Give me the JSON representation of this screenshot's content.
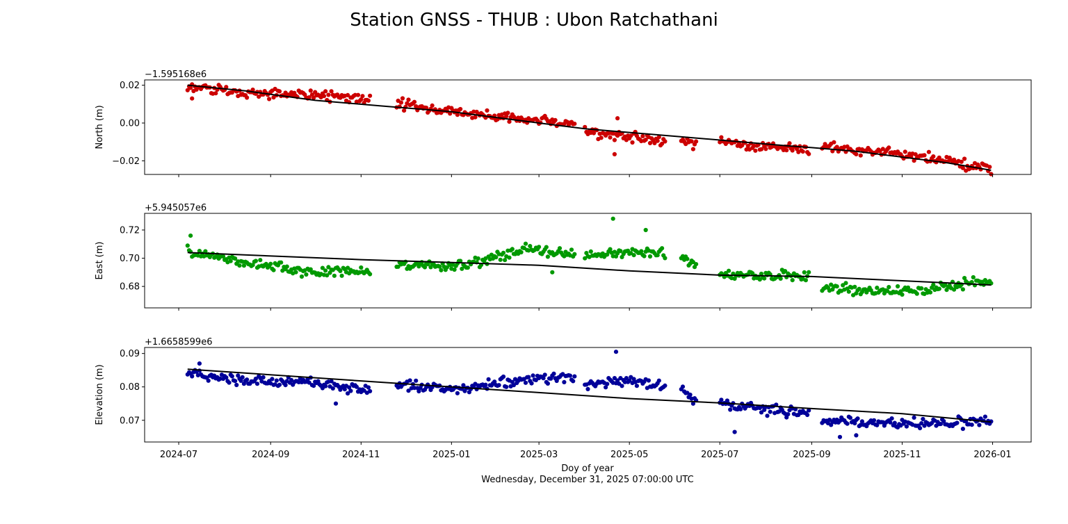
{
  "figure": {
    "title": "Station GNSS - THUB : Ubon Ratchathani",
    "xlabel": "Doy of year",
    "date_line": "Wednesday, December 31, 2025 07:00:00 UTC"
  },
  "colors": {
    "north": "#cc0000",
    "east": "#009900",
    "elevation": "#000099",
    "trend": "#000000"
  },
  "chart_data": [
    {
      "type": "scatter",
      "name": "north",
      "ylabel": "North (m)",
      "offset_label": "−1.595168e6",
      "x_range": [
        "2024-06-08",
        "2026-01-27"
      ],
      "xticks": [
        "2024-07",
        "2024-09",
        "2024-11",
        "2025-01",
        "2025-03",
        "2025-05",
        "2025-07",
        "2025-09",
        "2025-11",
        "2026-01"
      ],
      "ylim": [
        -0.0272,
        0.0228
      ],
      "yticks": [
        -0.02,
        0.0,
        0.02
      ],
      "ytick_labels": [
        "−0.02",
        "0.00",
        "0.02"
      ],
      "trend": {
        "x": [
          "2024-07-07",
          "2024-08-15",
          "2024-10-01",
          "2024-11-15",
          "2025-01-01",
          "2025-03-01",
          "2025-04-01",
          "2025-05-01",
          "2025-06-01",
          "2025-07-01",
          "2025-08-15",
          "2025-09-01",
          "2025-10-01",
          "2025-11-01",
          "2025-12-01",
          "2025-12-31"
        ],
        "y": [
          0.02,
          0.017,
          0.012,
          0.009,
          0.006,
          0.0,
          -0.003,
          -0.005,
          -0.007,
          -0.009,
          -0.012,
          -0.013,
          -0.015,
          -0.018,
          -0.021,
          -0.025
        ]
      },
      "segments": [
        {
          "x": [
            "2024-07-07",
            "2024-08-15",
            "2024-10-01",
            "2024-11-07"
          ],
          "y": [
            0.019,
            0.016,
            0.015,
            0.012
          ]
        },
        {
          "x": [
            "2024-11-25",
            "2025-01-01",
            "2025-02-15",
            "2025-03-25"
          ],
          "y": [
            0.01,
            0.006,
            0.002,
            0.0
          ]
        },
        {
          "x": [
            "2025-04-01",
            "2025-05-01",
            "2025-05-25"
          ],
          "y": [
            -0.005,
            -0.007,
            -0.01
          ]
        },
        {
          "x": [
            "2025-06-05",
            "2025-06-15"
          ],
          "y": [
            -0.009,
            -0.011
          ]
        },
        {
          "x": [
            "2025-07-01",
            "2025-08-10",
            "2025-08-30"
          ],
          "y": [
            -0.01,
            -0.013,
            -0.014
          ]
        },
        {
          "x": [
            "2025-09-08",
            "2025-10-15",
            "2025-12-01",
            "2025-12-31"
          ],
          "y": [
            -0.013,
            -0.015,
            -0.02,
            -0.025
          ]
        }
      ],
      "outliers": {
        "x": [
          "2024-07-10",
          "2025-04-21",
          "2025-04-23"
        ],
        "y": [
          0.013,
          -0.0165,
          0.0025
        ]
      }
    },
    {
      "type": "scatter",
      "name": "east",
      "ylabel": "East (m)",
      "offset_label": "+5.945057e6",
      "x_range": [
        "2024-06-08",
        "2026-01-27"
      ],
      "xticks": [
        "2024-07",
        "2024-09",
        "2024-11",
        "2025-01",
        "2025-03",
        "2025-05",
        "2025-07",
        "2025-09",
        "2025-11",
        "2026-01"
      ],
      "ylim": [
        0.6648,
        0.7318
      ],
      "yticks": [
        0.68,
        0.7,
        0.72
      ],
      "ytick_labels": [
        "0.68",
        "0.70",
        "0.72"
      ],
      "trend": {
        "x": [
          "2024-07-07",
          "2024-11-01",
          "2025-03-01",
          "2025-05-01",
          "2025-07-01",
          "2025-09-01",
          "2025-11-01",
          "2025-12-31"
        ],
        "y": [
          0.704,
          0.699,
          0.695,
          0.691,
          0.688,
          0.687,
          0.684,
          0.681
        ]
      },
      "segments": [
        {
          "x": [
            "2024-07-07",
            "2024-08-15",
            "2024-10-01",
            "2024-11-07"
          ],
          "y": [
            0.705,
            0.697,
            0.69,
            0.691
          ]
        },
        {
          "x": [
            "2024-11-25",
            "2025-01-10",
            "2025-02-20",
            "2025-03-25"
          ],
          "y": [
            0.694,
            0.695,
            0.706,
            0.703
          ]
        },
        {
          "x": [
            "2025-04-01",
            "2025-05-01",
            "2025-05-25"
          ],
          "y": [
            0.702,
            0.704,
            0.703
          ]
        },
        {
          "x": [
            "2025-06-05",
            "2025-06-15"
          ],
          "y": [
            0.7,
            0.695
          ]
        },
        {
          "x": [
            "2025-07-01",
            "2025-08-10",
            "2025-08-30"
          ],
          "y": [
            0.688,
            0.688,
            0.687
          ]
        },
        {
          "x": [
            "2025-09-08",
            "2025-10-15",
            "2025-11-15",
            "2025-12-31"
          ],
          "y": [
            0.68,
            0.676,
            0.678,
            0.684
          ]
        }
      ],
      "outliers": {
        "x": [
          "2024-07-09",
          "2025-04-20",
          "2025-05-12",
          "2025-03-10"
        ],
        "y": [
          0.716,
          0.728,
          0.72,
          0.69
        ]
      }
    },
    {
      "type": "scatter",
      "name": "elevation",
      "ylabel": "Elevation (m)",
      "offset_label": "+1.6658599e6",
      "x_range": [
        "2024-06-08",
        "2026-01-27"
      ],
      "xticks": [
        "2024-07",
        "2024-09",
        "2024-11",
        "2025-01",
        "2025-03",
        "2025-05",
        "2025-07",
        "2025-09",
        "2025-11",
        "2026-01"
      ],
      "ylim": [
        0.0635,
        0.0918
      ],
      "yticks": [
        0.07,
        0.08,
        0.09
      ],
      "ytick_labels": [
        "0.07",
        "0.08",
        "0.09"
      ],
      "trend": {
        "x": [
          "2024-07-07",
          "2024-11-01",
          "2025-01-01",
          "2025-03-01",
          "2025-05-01",
          "2025-07-01",
          "2025-09-01",
          "2025-11-01",
          "2025-12-31"
        ],
        "y": [
          0.0853,
          0.0818,
          0.08,
          0.0783,
          0.0765,
          0.0752,
          0.0735,
          0.072,
          0.0695
        ]
      },
      "segments": [
        {
          "x": [
            "2024-07-07",
            "2024-08-20",
            "2024-10-01",
            "2024-11-07"
          ],
          "y": [
            0.084,
            0.082,
            0.081,
            0.079
          ]
        },
        {
          "x": [
            "2024-11-25",
            "2025-01-01",
            "2025-02-15",
            "2025-03-25"
          ],
          "y": [
            0.081,
            0.079,
            0.082,
            0.083
          ]
        },
        {
          "x": [
            "2025-04-01",
            "2025-05-01",
            "2025-05-25"
          ],
          "y": [
            0.081,
            0.082,
            0.08
          ]
        },
        {
          "x": [
            "2025-06-05",
            "2025-06-15"
          ],
          "y": [
            0.079,
            0.076
          ]
        },
        {
          "x": [
            "2025-07-01",
            "2025-08-10",
            "2025-08-30"
          ],
          "y": [
            0.075,
            0.073,
            0.072
          ]
        },
        {
          "x": [
            "2025-09-08",
            "2025-10-15",
            "2025-12-01",
            "2025-12-31"
          ],
          "y": [
            0.07,
            0.069,
            0.069,
            0.07
          ]
        }
      ],
      "outliers": {
        "x": [
          "2024-07-15",
          "2024-10-15",
          "2025-04-22",
          "2025-09-20",
          "2025-10-01",
          "2025-07-11"
        ],
        "y": [
          0.087,
          0.075,
          0.0905,
          0.065,
          0.0655,
          0.0665
        ]
      }
    }
  ]
}
